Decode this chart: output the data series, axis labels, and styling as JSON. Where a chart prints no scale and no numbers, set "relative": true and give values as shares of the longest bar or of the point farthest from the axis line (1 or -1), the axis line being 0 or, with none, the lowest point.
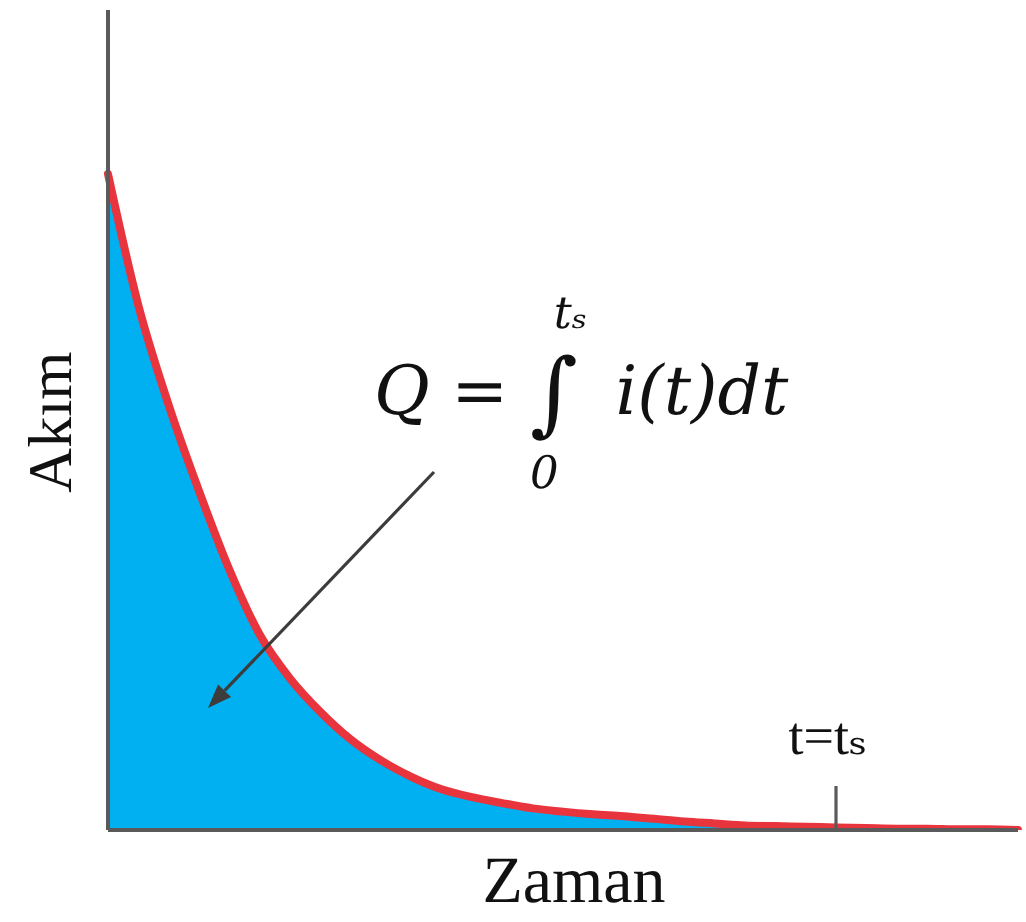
{
  "chart_data": {
    "type": "area",
    "xlabel": "Zaman",
    "ylabel": "Akım",
    "annotations": [
      "Q = ∫$_{0}$$^{tₛ}$ i(t)dt",
      "t=tₛ"
    ],
    "categories": [
      null,
      null,
      null,
      null,
      null,
      null,
      null,
      null,
      null,
      null,
      null,
      null,
      null,
      null,
      null,
      null,
      null,
      null,
      null,
      null,
      null,
      null,
      null,
      null,
      null,
      null,
      null,
      null,
      null,
      null,
      null
    ],
    "relative": true,
    "series": [
      {
        "color": "#00b0f0",
        "values": [
          1,
          0.8,
          0.648,
          0.517,
          0.397,
          0.298,
          0.231,
          0.18,
          0.138,
          0.106,
          0.081,
          0.062,
          0.05,
          0.041,
          0.033,
          0.028,
          0.024,
          0.021,
          0.017,
          0.013,
          0.01,
          0.007,
          0.006,
          0.005,
          0.004,
          0.003,
          0.002,
          0.002,
          0.001,
          0.001,
          0
        ]
      }
    ]
  }
}
